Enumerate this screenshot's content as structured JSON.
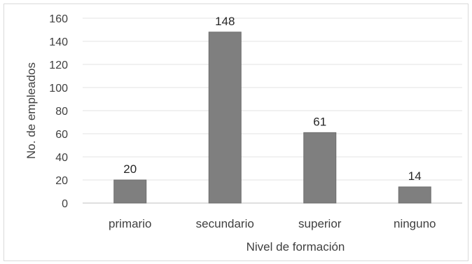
{
  "chart_data": {
    "type": "bar",
    "title": "",
    "xlabel": "Nivel de formación",
    "ylabel": "No. de empleados",
    "categories": [
      "primario",
      "secundario",
      "superior",
      "ninguno"
    ],
    "values": [
      20,
      148,
      61,
      14
    ],
    "data_labels": [
      "20",
      "148",
      "61",
      "14"
    ],
    "ylim": [
      0,
      160
    ],
    "yticks": [
      0,
      20,
      40,
      60,
      80,
      100,
      120,
      140,
      160
    ],
    "ytick_labels": [
      "0",
      "20",
      "40",
      "60",
      "80",
      "100",
      "120",
      "140",
      "160"
    ],
    "grid": true,
    "legend": "none",
    "colors": {
      "bar": "#7f7f7f",
      "bar_edge": "#6e6e6e",
      "grid": "#e3e3e3",
      "axis": "#bfbfbf",
      "text": "#404040"
    }
  }
}
